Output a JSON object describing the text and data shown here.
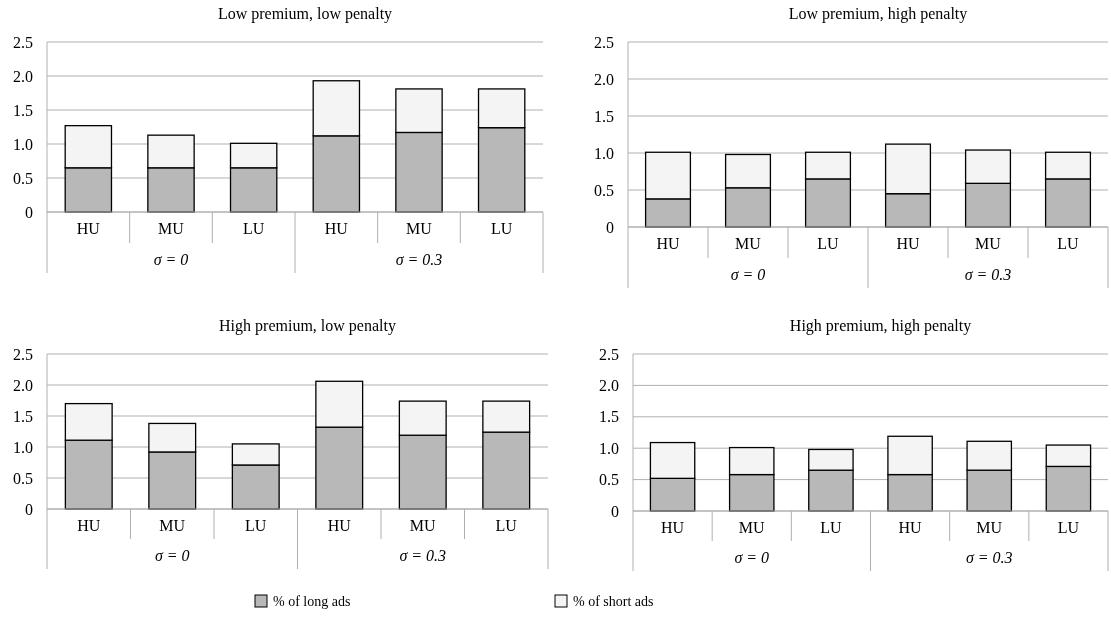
{
  "chart_data": [
    {
      "type": "bar",
      "title": "Low premium, low penalty",
      "categories": [
        "HU",
        "MU",
        "LU",
        "HU",
        "MU",
        "LU"
      ],
      "stacked": true,
      "ylim": [
        0,
        2.5
      ],
      "yticks": [
        {
          "value": 0,
          "label": "0"
        },
        {
          "value": 0.5,
          "label": "0.5"
        },
        {
          "value": 1,
          "label": "1.0"
        },
        {
          "value": 1.5,
          "label": "1.5"
        },
        {
          "value": 2,
          "label": "2.0"
        },
        {
          "value": 2.5,
          "label": "2.5"
        }
      ],
      "grid": "y",
      "annotations": [
        "σ = 0",
        "σ = 0.3"
      ],
      "series": [
        {
          "color": "#b8b8b8",
          "values": [
            0.65,
            0.65,
            0.65,
            1.12,
            1.17,
            1.24
          ]
        },
        {
          "color": "#f4f4f4",
          "values": [
            0.62,
            0.48,
            0.36,
            0.81,
            0.64,
            0.57
          ]
        }
      ]
    },
    {
      "type": "bar",
      "title": "Low premium, high penalty",
      "categories": [
        "HU",
        "MU",
        "LU",
        "HU",
        "MU",
        "LU"
      ],
      "stacked": true,
      "ylim": [
        0,
        2.5
      ],
      "yticks": [
        {
          "value": 0,
          "label": "0"
        },
        {
          "value": 0.5,
          "label": "0.5"
        },
        {
          "value": 1,
          "label": "1.0"
        },
        {
          "value": 1.5,
          "label": "1.5"
        },
        {
          "value": 2,
          "label": "2.0"
        },
        {
          "value": 2.5,
          "label": "2.5"
        }
      ],
      "grid": "y",
      "annotations": [
        "σ = 0",
        "σ = 0.3"
      ],
      "series": [
        {
          "color": "#b8b8b8",
          "values": [
            0.38,
            0.53,
            0.65,
            0.45,
            0.59,
            0.65
          ]
        },
        {
          "color": "#f4f4f4",
          "values": [
            0.63,
            0.45,
            0.36,
            0.67,
            0.45,
            0.36
          ]
        }
      ]
    },
    {
      "type": "bar",
      "title": "High premium, low penalty",
      "categories": [
        "HU",
        "MU",
        "LU",
        "HU",
        "MU",
        "LU"
      ],
      "stacked": true,
      "ylim": [
        0,
        2.5
      ],
      "yticks": [
        {
          "value": 0,
          "label": "0"
        },
        {
          "value": 0.5,
          "label": "0.5"
        },
        {
          "value": 1,
          "label": "1.0"
        },
        {
          "value": 1.5,
          "label": "1.5"
        },
        {
          "value": 2,
          "label": "2.0"
        },
        {
          "value": 2.5,
          "label": "2.5"
        }
      ],
      "grid": "y",
      "annotations": [
        "σ = 0",
        "σ = 0.3"
      ],
      "legend": "bottom",
      "series": [
        {
          "name": "% of long ads",
          "color": "#b8b8b8",
          "values": [
            1.11,
            0.92,
            0.71,
            1.32,
            1.19,
            1.24
          ]
        },
        {
          "name": "% of short ads",
          "color": "#f4f4f4",
          "values": [
            0.59,
            0.46,
            0.34,
            0.74,
            0.55,
            0.5
          ]
        }
      ]
    },
    {
      "type": "bar",
      "title": "High premium, high penalty",
      "categories": [
        "HU",
        "MU",
        "LU",
        "HU",
        "MU",
        "LU"
      ],
      "stacked": true,
      "ylim": [
        0,
        2.5
      ],
      "yticks": [
        {
          "value": 0,
          "label": "0"
        },
        {
          "value": 0.5,
          "label": "0.5"
        },
        {
          "value": 1,
          "label": "1.0"
        },
        {
          "value": 1.5,
          "label": "1.5"
        },
        {
          "value": 2,
          "label": "2.0"
        },
        {
          "value": 2.5,
          "label": "2.5"
        }
      ],
      "grid": "y",
      "annotations": [
        "σ = 0",
        "σ = 0.3"
      ],
      "series": [
        {
          "color": "#b8b8b8",
          "values": [
            0.52,
            0.58,
            0.65,
            0.58,
            0.65,
            0.71
          ]
        },
        {
          "color": "#f4f4f4",
          "values": [
            0.57,
            0.43,
            0.33,
            0.61,
            0.46,
            0.34
          ]
        }
      ]
    }
  ]
}
